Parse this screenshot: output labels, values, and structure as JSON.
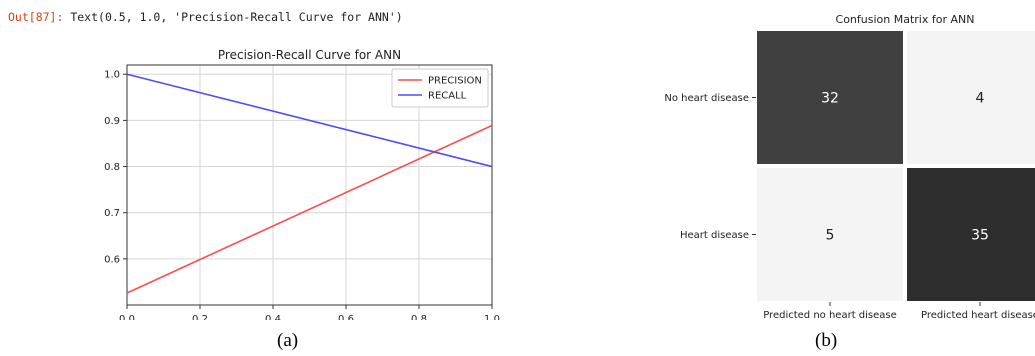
{
  "output": {
    "prompt": "Out[87]:",
    "text": "Text(0.5, 1.0, 'Precision-Recall Curve for ANN')"
  },
  "captions": {
    "a": "(a)",
    "b": "(b)"
  },
  "chart_data": [
    {
      "type": "line",
      "title": "Precision-Recall Curve for ANN",
      "xlim": [
        0.0,
        1.0
      ],
      "ylim": [
        0.5,
        1.02
      ],
      "xticks": [
        "0.0",
        "0.2",
        "0.4",
        "0.6",
        "0.8",
        "1.0"
      ],
      "yticks": [
        "0.6",
        "0.7",
        "0.8",
        "0.9",
        "1.0"
      ],
      "grid": true,
      "legend_position": "top-right",
      "series": [
        {
          "name": "PRECISION",
          "color": "#ff4b4b",
          "x": [
            0.0,
            1.0
          ],
          "y": [
            0.526,
            0.889
          ]
        },
        {
          "name": "RECALL",
          "color": "#4b4bff",
          "x": [
            0.0,
            1.0
          ],
          "y": [
            1.0,
            0.8
          ]
        }
      ]
    },
    {
      "type": "heatmap",
      "title": "Confusion Matrix for ANN",
      "row_labels": [
        "No heart disease",
        "Heart disease"
      ],
      "col_labels": [
        "Predicted no heart disease",
        "Predicted heart disease"
      ],
      "values": [
        [
          32,
          4
        ],
        [
          5,
          35
        ]
      ],
      "colors": {
        "dark": "#404040",
        "darker": "#2e2e2e",
        "light": "#f4f4f4"
      }
    }
  ]
}
